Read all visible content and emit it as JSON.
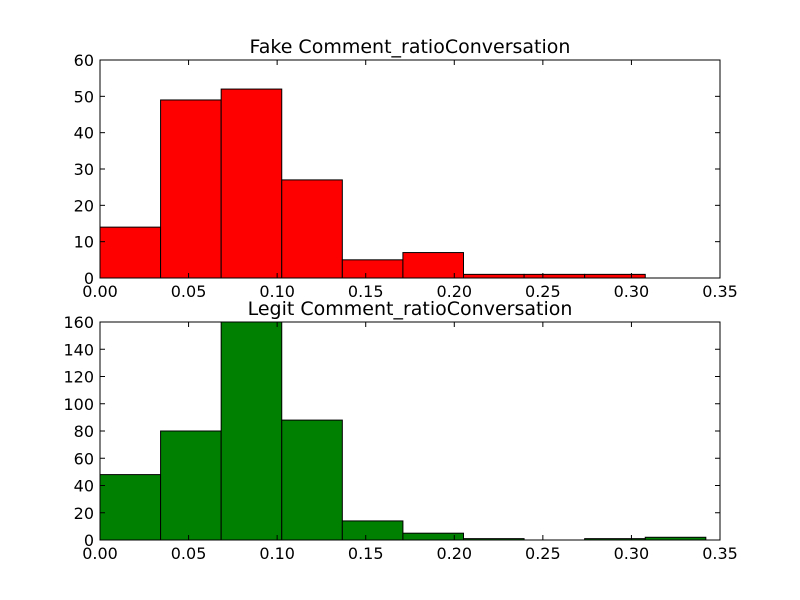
{
  "chart_data": [
    {
      "type": "bar",
      "title": "Fake Comment_ratioConversation",
      "xlabel": "",
      "ylabel": "",
      "xlim": [
        0,
        0.35
      ],
      "ylim": [
        0,
        60
      ],
      "xticks": [
        0.0,
        0.05,
        0.1,
        0.15,
        0.2,
        0.25,
        0.3,
        0.35
      ],
      "xtick_labels": [
        "0.00",
        "0.05",
        "0.10",
        "0.15",
        "0.20",
        "0.25",
        "0.30",
        "0.35"
      ],
      "yticks": [
        0,
        10,
        20,
        30,
        40,
        50,
        60
      ],
      "ytick_labels": [
        "0",
        "10",
        "20",
        "30",
        "40",
        "50",
        "60"
      ],
      "bin_edges": [
        0.0,
        0.0342,
        0.0684,
        0.1026,
        0.1368,
        0.171,
        0.2052,
        0.2394,
        0.2736,
        0.3078,
        0.342
      ],
      "values": [
        14,
        49,
        52,
        27,
        5,
        7,
        1,
        1,
        1,
        0
      ],
      "color": "#ff0000"
    },
    {
      "type": "bar",
      "title": "Legit Comment_ratioConversation",
      "xlabel": "",
      "ylabel": "",
      "xlim": [
        0,
        0.35
      ],
      "ylim": [
        0,
        160
      ],
      "xticks": [
        0.0,
        0.05,
        0.1,
        0.15,
        0.2,
        0.25,
        0.3,
        0.35
      ],
      "xtick_labels": [
        "0.00",
        "0.05",
        "0.10",
        "0.15",
        "0.20",
        "0.25",
        "0.30",
        "0.35"
      ],
      "yticks": [
        0,
        20,
        40,
        60,
        80,
        100,
        120,
        140,
        160
      ],
      "ytick_labels": [
        "0",
        "20",
        "40",
        "60",
        "80",
        "100",
        "120",
        "140",
        "160"
      ],
      "bin_edges": [
        0.0,
        0.0342,
        0.0684,
        0.1026,
        0.1368,
        0.171,
        0.2052,
        0.2394,
        0.2736,
        0.3078,
        0.342
      ],
      "values": [
        48,
        80,
        160,
        88,
        14,
        5,
        1,
        0,
        1,
        2
      ],
      "color": "#008000"
    }
  ]
}
